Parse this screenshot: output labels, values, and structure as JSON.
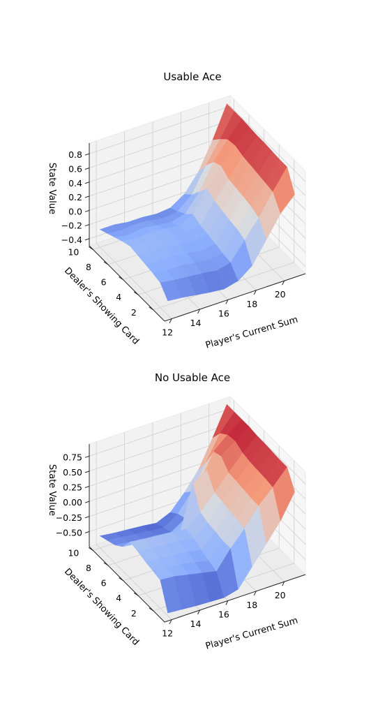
{
  "chart_data": [
    {
      "type": "surface",
      "title": "Usable Ace",
      "xlabel": "Player's Current Sum",
      "ylabel": "Dealer's Showing Card",
      "zlabel": "State Value",
      "x": [
        12,
        13,
        14,
        15,
        16,
        17,
        18,
        19,
        20,
        21
      ],
      "y": [
        1,
        2,
        3,
        4,
        5,
        6,
        7,
        8,
        9,
        10
      ],
      "x_ticks": [
        "12",
        "14",
        "16",
        "18",
        "20"
      ],
      "y_ticks": [
        "2",
        "4",
        "6",
        "8",
        "10"
      ],
      "z_ticks": [
        "−0.4",
        "−0.2",
        "0.0",
        "0.2",
        "0.4",
        "0.6",
        "0.8"
      ],
      "zlim": [
        -0.5,
        0.95
      ],
      "colormap": "coolwarm",
      "z": [
        [
          -0.3,
          -0.32,
          -0.35,
          -0.38,
          -0.4,
          -0.35,
          -0.2,
          0.1,
          0.4,
          0.6
        ],
        [
          -0.15,
          -0.18,
          -0.2,
          -0.22,
          -0.25,
          -0.2,
          0.05,
          0.3,
          0.6,
          0.88
        ],
        [
          -0.12,
          -0.15,
          -0.15,
          -0.18,
          -0.2,
          -0.18,
          0.1,
          0.35,
          0.62,
          0.88
        ],
        [
          -0.1,
          -0.12,
          -0.12,
          -0.15,
          -0.18,
          -0.15,
          0.12,
          0.38,
          0.64,
          0.89
        ],
        [
          -0.08,
          -0.1,
          -0.1,
          -0.12,
          -0.15,
          -0.12,
          0.15,
          0.4,
          0.66,
          0.9
        ],
        [
          -0.06,
          -0.08,
          -0.08,
          -0.1,
          -0.12,
          -0.1,
          0.18,
          0.42,
          0.68,
          0.9
        ],
        [
          -0.1,
          -0.12,
          -0.1,
          -0.12,
          -0.15,
          -0.05,
          0.25,
          0.5,
          0.72,
          0.91
        ],
        [
          -0.15,
          -0.18,
          -0.15,
          -0.18,
          -0.2,
          -0.15,
          0.1,
          0.45,
          0.7,
          0.92
        ],
        [
          -0.2,
          -0.22,
          -0.2,
          -0.22,
          -0.25,
          -0.22,
          -0.05,
          0.3,
          0.6,
          0.92
        ],
        [
          -0.25,
          -0.25,
          -0.28,
          -0.28,
          -0.3,
          -0.28,
          -0.15,
          0.1,
          0.48,
          0.92
        ]
      ]
    },
    {
      "type": "surface",
      "title": "No Usable Ace",
      "xlabel": "Player's Current Sum",
      "ylabel": "Dealer's Showing Card",
      "zlabel": "State Value",
      "x": [
        12,
        13,
        14,
        15,
        16,
        17,
        18,
        19,
        20,
        21
      ],
      "y": [
        1,
        2,
        3,
        4,
        5,
        6,
        7,
        8,
        9,
        10
      ],
      "x_ticks": [
        "12",
        "14",
        "16",
        "18",
        "20"
      ],
      "y_ticks": [
        "2",
        "4",
        "6",
        "8",
        "10"
      ],
      "z_ticks": [
        "−0.50",
        "−0.25",
        "0.00",
        "0.25",
        "0.50",
        "0.75"
      ],
      "zlim": [
        -0.75,
        0.95
      ],
      "colormap": "coolwarm",
      "z": [
        [
          -0.7,
          -0.72,
          -0.74,
          -0.75,
          -0.76,
          -0.7,
          -0.4,
          -0.1,
          0.2,
          0.6
        ],
        [
          -0.28,
          -0.3,
          -0.35,
          -0.4,
          -0.45,
          -0.15,
          0.1,
          0.4,
          0.63,
          0.88
        ],
        [
          -0.25,
          -0.28,
          -0.3,
          -0.35,
          -0.4,
          -0.15,
          0.12,
          0.4,
          0.65,
          0.88
        ],
        [
          -0.22,
          -0.25,
          -0.28,
          -0.3,
          -0.35,
          -0.12,
          0.15,
          0.42,
          0.66,
          0.89
        ],
        [
          -0.18,
          -0.2,
          -0.22,
          -0.25,
          -0.28,
          -0.1,
          0.18,
          0.44,
          0.67,
          0.9
        ],
        [
          -0.15,
          -0.18,
          -0.2,
          -0.22,
          -0.25,
          -0.05,
          0.2,
          0.45,
          0.7,
          0.9
        ],
        [
          -0.35,
          -0.38,
          -0.4,
          -0.45,
          -0.5,
          0.3,
          0.45,
          0.6,
          0.77,
          0.92
        ],
        [
          -0.45,
          -0.48,
          -0.5,
          -0.52,
          -0.55,
          -0.4,
          0.1,
          0.55,
          0.75,
          0.92
        ],
        [
          -0.5,
          -0.52,
          -0.55,
          -0.58,
          -0.6,
          -0.45,
          -0.15,
          0.25,
          0.65,
          0.92
        ],
        [
          -0.55,
          -0.58,
          -0.6,
          -0.62,
          -0.65,
          -0.55,
          -0.3,
          0.0,
          0.45,
          0.92
        ]
      ]
    }
  ]
}
